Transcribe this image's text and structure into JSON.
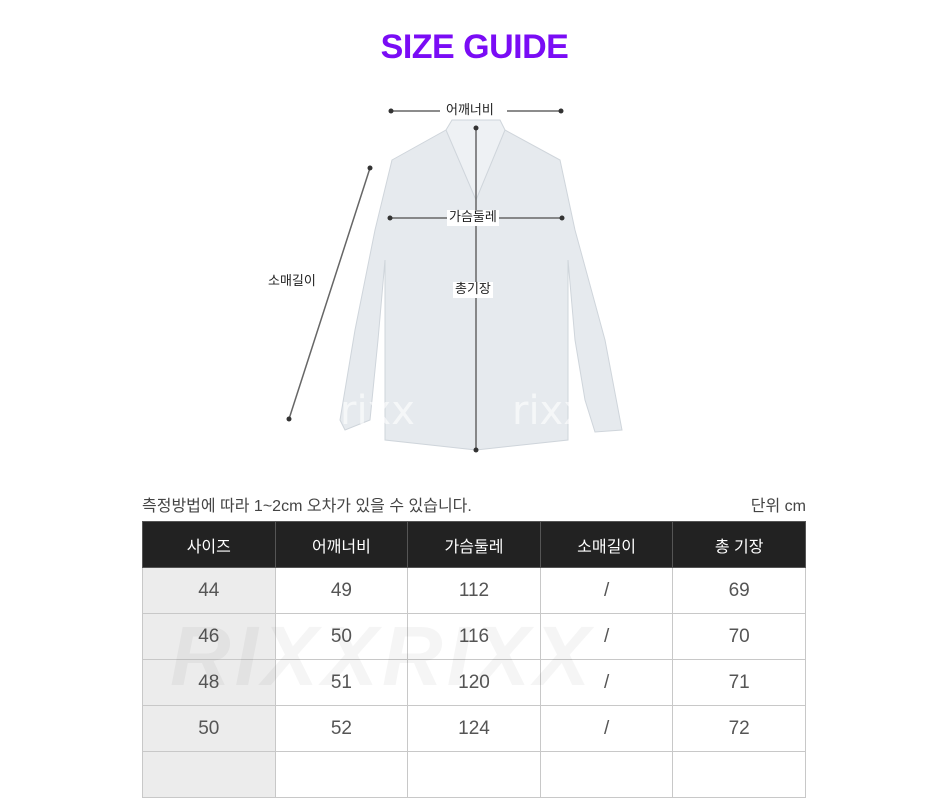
{
  "title": "SIZE GUIDE",
  "diagram": {
    "shoulder": "어깨너비",
    "chest": "가슴둘레",
    "sleeve": "소매길이",
    "length": "총기장",
    "watermark": "rixx"
  },
  "note": "측정방법에 따라 1~2cm 오차가 있을 수 있습니다.",
  "unit": "단위 cm",
  "table": {
    "headers": [
      "사이즈",
      "어깨너비",
      "가슴둘레",
      "소매길이",
      "총 기장"
    ],
    "rows": [
      [
        "44",
        "49",
        "112",
        "/",
        "69"
      ],
      [
        "46",
        "50",
        "116",
        "/",
        "70"
      ],
      [
        "48",
        "51",
        "120",
        "/",
        "71"
      ],
      [
        "50",
        "52",
        "124",
        "/",
        "72"
      ],
      [
        "",
        "",
        "",
        "",
        ""
      ]
    ]
  },
  "table_watermark": "RIXXRIXX",
  "colors": {
    "title": "#7a0cf5",
    "header_bg": "#222222"
  }
}
